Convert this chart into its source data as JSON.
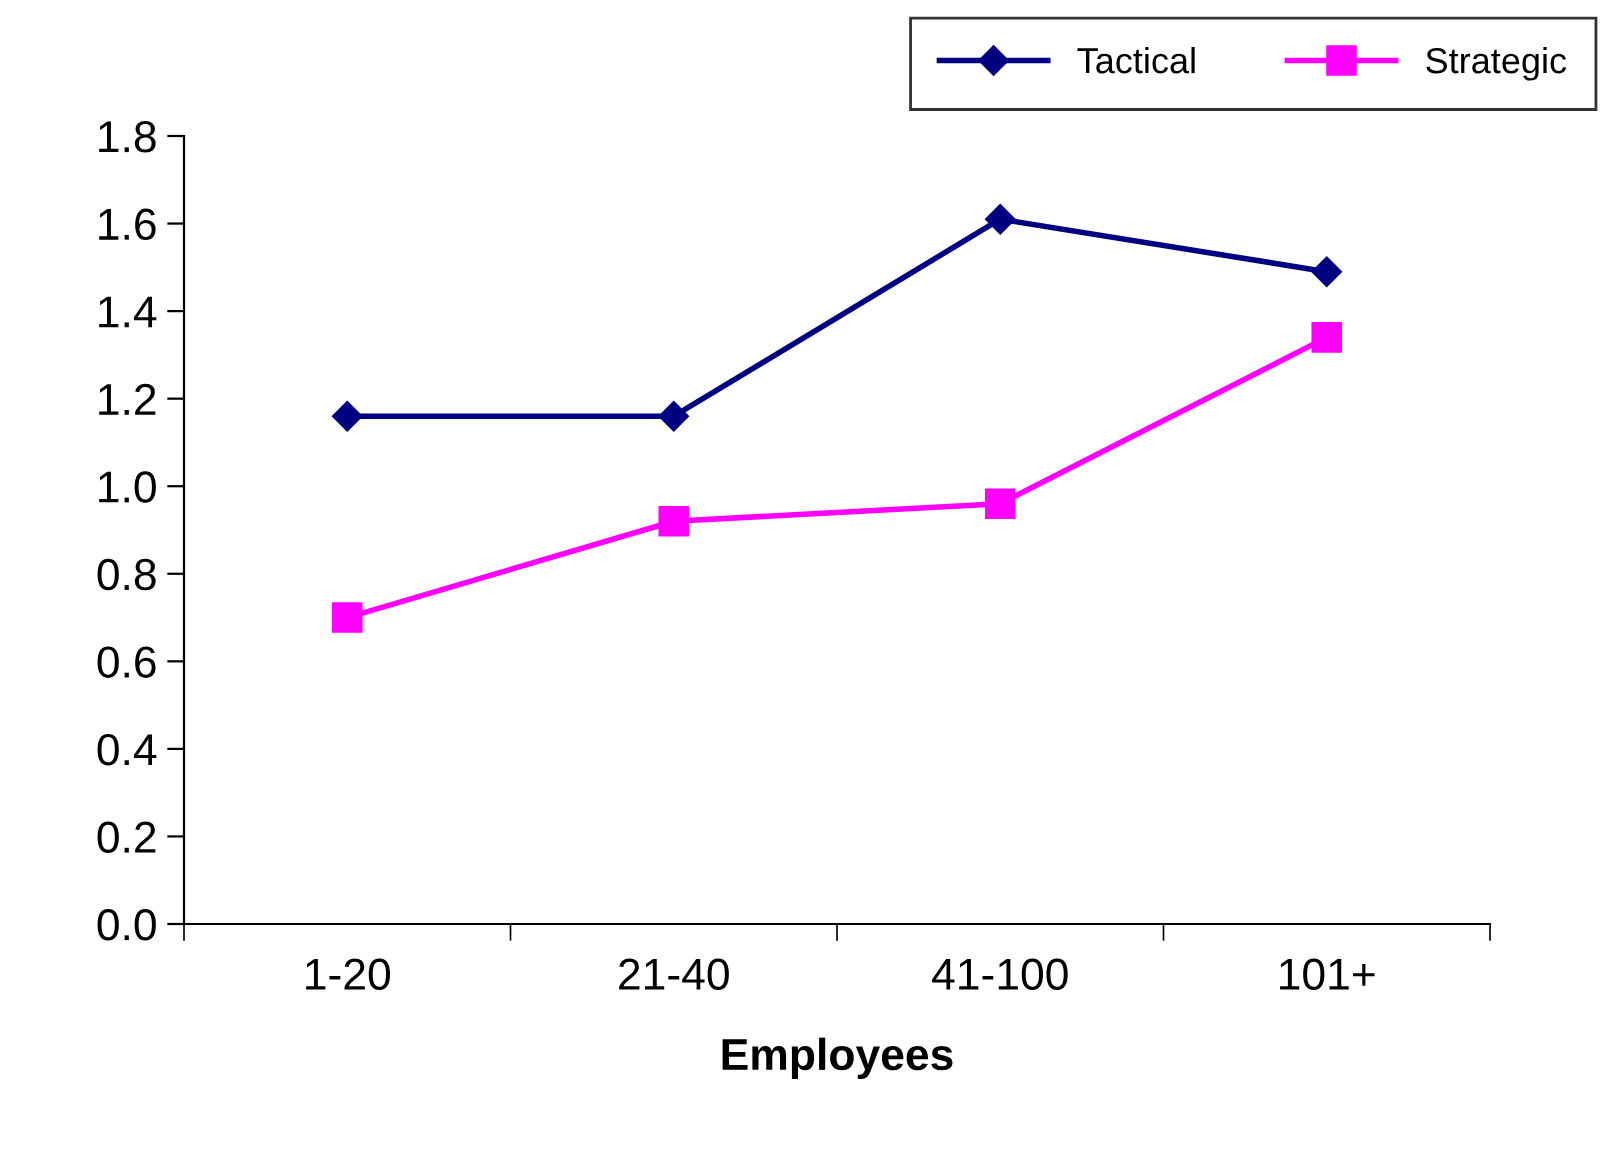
{
  "chart_data": {
    "type": "line",
    "xlabel": "Employees",
    "categories": [
      "1-20",
      "21-40",
      "41-100",
      "101+"
    ],
    "series": [
      {
        "name": "Tactical",
        "color": "#000080",
        "values": [
          1.16,
          1.16,
          1.61,
          1.49
        ],
        "marker": "diamond"
      },
      {
        "name": "Strategic",
        "color": "#ff00ff",
        "values": [
          0.7,
          0.92,
          0.96,
          1.34
        ],
        "marker": "square"
      }
    ],
    "ylim": [
      0,
      1.8
    ],
    "yticks": [
      {
        "value": 0,
        "label": "0.0"
      },
      {
        "value": 0.2,
        "label": "0.2"
      },
      {
        "value": 0.4,
        "label": "0.4"
      },
      {
        "value": 0.6,
        "label": "0.6"
      },
      {
        "value": 0.8,
        "label": "0.8"
      },
      {
        "value": 1.0,
        "label": "1.0"
      },
      {
        "value": 1.2,
        "label": "1.2"
      },
      {
        "value": 1.4,
        "label": "1.4"
      },
      {
        "value": 1.6,
        "label": "1.6"
      },
      {
        "value": 1.8,
        "label": "1.8"
      }
    ],
    "grid": false,
    "legend": "top right",
    "line_style": "solid"
  }
}
